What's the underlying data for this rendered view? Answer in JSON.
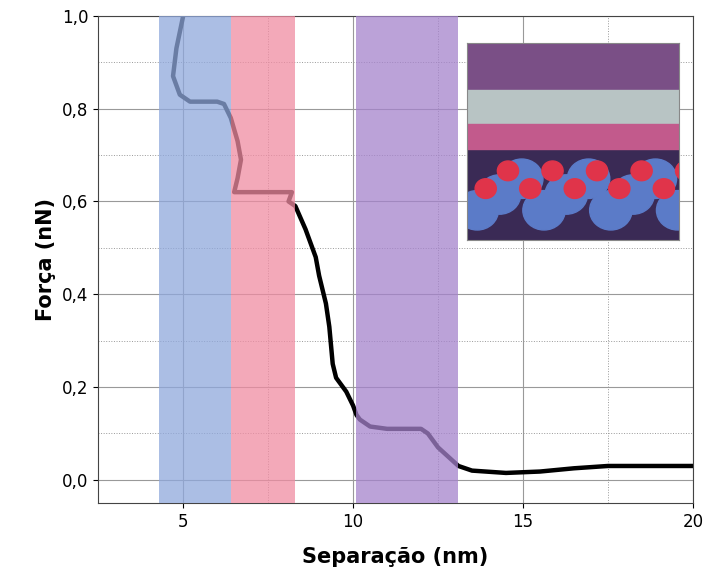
{
  "chart_data": {
    "type": "line",
    "x_label": "Separação (nm)",
    "y_label": "Força (nN)",
    "series": [
      {
        "name": null,
        "color": "#000000",
        "x": [
          5.0,
          4.8,
          4.7,
          4.9,
          5.2,
          6.0,
          6.2,
          6.4,
          6.6,
          6.7,
          6.6,
          6.5,
          7.5,
          8.2,
          8.1,
          8.3,
          8.6,
          8.9,
          9.0,
          9.2,
          9.3,
          9.4,
          9.5,
          9.8,
          10.0,
          10.1,
          10.2,
          10.5,
          11.0,
          11.5,
          12.0,
          12.2,
          12.5,
          12.8,
          13.1,
          13.5,
          14.5,
          15.5,
          16.5,
          17.5,
          18.5,
          20.0
        ],
        "values": [
          1.0,
          0.93,
          0.87,
          0.83,
          0.815,
          0.815,
          0.81,
          0.78,
          0.73,
          0.69,
          0.65,
          0.62,
          0.62,
          0.62,
          0.6,
          0.59,
          0.54,
          0.48,
          0.44,
          0.38,
          0.33,
          0.25,
          0.22,
          0.19,
          0.16,
          0.14,
          0.13,
          0.115,
          0.11,
          0.11,
          0.11,
          0.1,
          0.07,
          0.05,
          0.03,
          0.02,
          0.015,
          0.018,
          0.025,
          0.03,
          0.03,
          0.03
        ]
      }
    ],
    "regions": [
      {
        "start": 4.3,
        "end": 6.4,
        "color": "#8fa8dc"
      },
      {
        "start": 6.4,
        "end": 8.3,
        "color": "#f08ca2"
      },
      {
        "start": 10.1,
        "end": 13.1,
        "color": "#a583cc"
      }
    ],
    "xlim": [
      2.5,
      20
    ],
    "xticks": [
      5,
      10,
      15,
      20
    ],
    "ylim": [
      -0.05,
      1.0
    ],
    "yticks": [
      {
        "value": 0.0,
        "label": "0,0"
      },
      {
        "value": 0.2,
        "label": "0,2"
      },
      {
        "value": 0.4,
        "label": "0,4"
      },
      {
        "value": 0.6,
        "label": "0,6"
      },
      {
        "value": 0.8,
        "label": "0,8"
      },
      {
        "value": 1.0,
        "label": "1,0"
      }
    ],
    "grid": true
  }
}
